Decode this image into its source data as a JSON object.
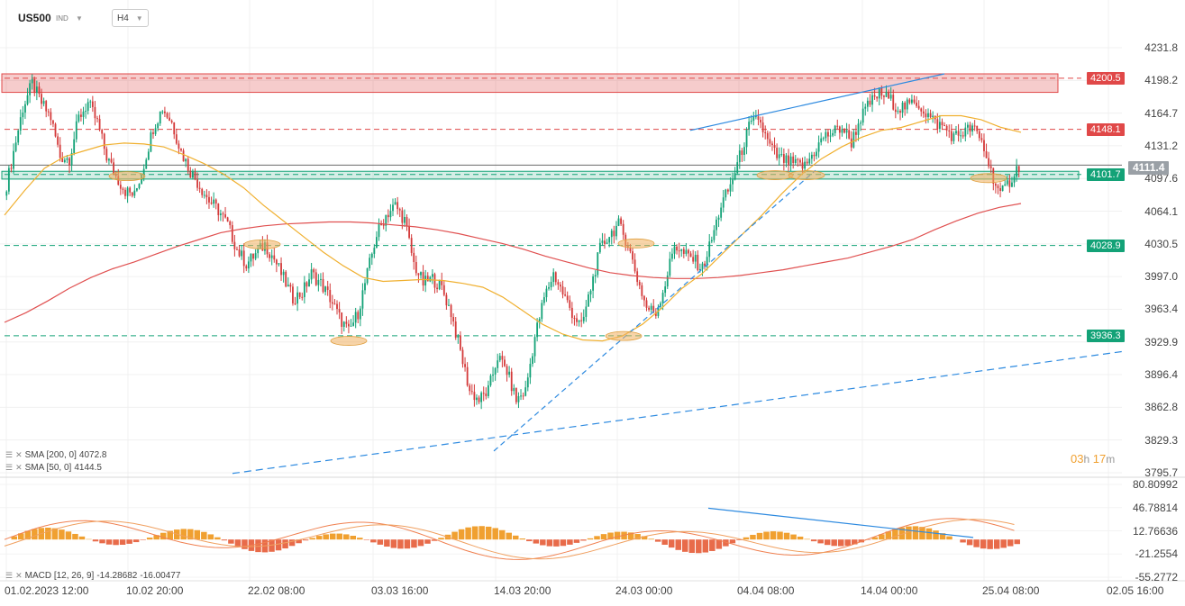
{
  "header": {
    "symbol": "US500",
    "type": "IND",
    "timeframe": "H4",
    "dropdown_icon": "chevron-down-icon"
  },
  "chart_data": {
    "type": "candlestick",
    "interval": "H4",
    "ylim": [
      3795.7,
      4231.8
    ],
    "y_ticks": [
      "4231.8",
      "4198.2",
      "4164.7",
      "4131.2",
      "4097.6",
      "4064.1",
      "4030.5",
      "3997.0",
      "3963.4",
      "3929.9",
      "3896.4",
      "3862.8",
      "3829.3",
      "3795.7"
    ],
    "x_labels": [
      "01.02.2023  12:00",
      "10.02  20:00",
      "22.02  08:00",
      "03.03  16:00",
      "14.03  20:00",
      "24.03  00:00",
      "04.04  08:00",
      "14.04  00:00",
      "25.04  08:00",
      "02.05  16:00"
    ],
    "current_price": "4111.4",
    "price_levels": [
      {
        "label": "4200.5",
        "value": 4200.5,
        "color": "#e04848",
        "style": "dashed"
      },
      {
        "label": "4148.1",
        "value": 4148.1,
        "color": "#e04848",
        "style": "dashed"
      },
      {
        "label": "4101.7",
        "value": 4101.7,
        "color": "#13a277",
        "style": "dashed"
      },
      {
        "label": "4028.9",
        "value": 4028.9,
        "color": "#13a277",
        "style": "dashed"
      },
      {
        "label": "3936.3",
        "value": 3936.3,
        "color": "#13a277",
        "style": "dashed"
      }
    ],
    "zones": [
      {
        "kind": "resistance",
        "from": 4186,
        "to": 4205,
        "color": "#e04848"
      },
      {
        "kind": "support",
        "from": 4097,
        "to": 4105,
        "color": "#13a277"
      }
    ],
    "path": [
      4080,
      4125,
      4170,
      4195,
      4175,
      4160,
      4120,
      4118,
      4160,
      4175,
      4155,
      4120,
      4100,
      4085,
      4080,
      4112,
      4150,
      4170,
      4155,
      4125,
      4105,
      4090,
      4075,
      4065,
      4050,
      4025,
      4010,
      4020,
      4030,
      4015,
      3995,
      3975,
      3980,
      4000,
      3990,
      3975,
      3955,
      3940,
      3960,
      4000,
      4040,
      4060,
      4070,
      4055,
      4010,
      3990,
      3995,
      3985,
      3960,
      3920,
      3880,
      3870,
      3880,
      3915,
      3900,
      3870,
      3880,
      3935,
      3975,
      4000,
      3980,
      3960,
      3945,
      3985,
      4025,
      4040,
      4050,
      4030,
      3995,
      3965,
      3960,
      3990,
      4030,
      4020,
      4015,
      4005,
      4035,
      4070,
      4090,
      4120,
      4150,
      4160,
      4135,
      4120,
      4115,
      4112,
      4110,
      4125,
      4140,
      4145,
      4150,
      4135,
      4160,
      4175,
      4185,
      4180,
      4170,
      4172,
      4176,
      4165,
      4155,
      4150,
      4140,
      4145,
      4150,
      4135,
      4105,
      4080,
      4095,
      4111
    ],
    "series": [
      {
        "name": "SMA [200, 0]",
        "last": "4072.8",
        "color": "#e05050",
        "values": [
          3950,
          3960,
          3972,
          3985,
          3996,
          4005,
          4012,
          4020,
          4028,
          4035,
          4042,
          4046,
          4049,
          4051,
          4052,
          4053,
          4053,
          4052,
          4050,
          4048,
          4045,
          4041,
          4036,
          4031,
          4025,
          4018,
          4012,
          4006,
          4001,
          3998,
          3996,
          3995,
          3995,
          3996,
          3998,
          4001,
          4004,
          4008,
          4012,
          4016,
          4022,
          4028,
          4035,
          4045,
          4054,
          4062,
          4068,
          4072
        ]
      },
      {
        "name": "SMA [50, 0]",
        "last": "4144.5",
        "color": "#f0b030",
        "values": [
          4060,
          4085,
          4108,
          4120,
          4126,
          4132,
          4134,
          4133,
          4130,
          4122,
          4113,
          4102,
          4088,
          4070,
          4054,
          4038,
          4022,
          4008,
          3996,
          3992,
          3993,
          3994,
          3993,
          3990,
          3986,
          3976,
          3962,
          3948,
          3938,
          3932,
          3931,
          3936,
          3948,
          3965,
          3985,
          4000,
          4020,
          4040,
          4060,
          4082,
          4102,
          4118,
          4130,
          4140,
          4147,
          4150,
          4156,
          4162,
          4162,
          4158,
          4150,
          4145
        ]
      }
    ],
    "trendlines": [
      {
        "color": "#2d8ae0",
        "style": "dashed"
      },
      {
        "color": "#2d8ae0",
        "style": "dashed"
      },
      {
        "color": "#2d8ae0",
        "style": "solid"
      }
    ],
    "timer": {
      "hours": "03",
      "h_unit": "h",
      "minutes": "17",
      "m_unit": "m"
    },
    "macd": {
      "name": "MACD [12, 26, 9]",
      "macd_value": "-14.28682",
      "signal_value": "-16.00477",
      "ylim": [
        -55.2772,
        80.80992
      ],
      "y_ticks": [
        "80.80992",
        "46.78814",
        "12.76636",
        "-21.2554",
        "-55.2772"
      ],
      "colors": {
        "macd": "#f08050",
        "signal": "#f0a060",
        "hist_pos": "#f0a030",
        "hist_neg": "#e86b4a"
      }
    }
  }
}
